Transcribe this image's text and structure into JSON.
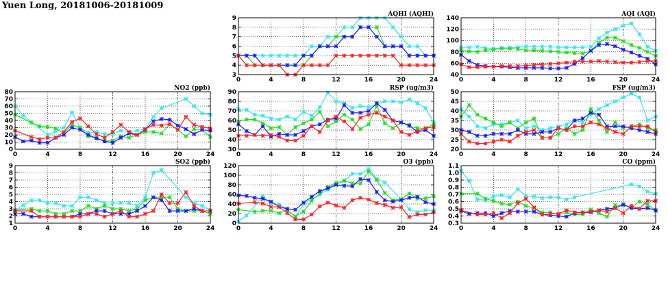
{
  "title": "Yuen Long, 20181006-20181009",
  "series_colors": [
    "#33e6f2",
    "#22dd22",
    "#1a1aff",
    "#ff2020"
  ],
  "chart_data": [
    {
      "type": "line",
      "title": "AQHI (AQHI)",
      "ylim": [
        3,
        9
      ],
      "yticks": [
        3,
        4,
        5,
        6,
        7,
        8,
        9
      ],
      "xlim": [
        0,
        24
      ],
      "xticks": [
        0,
        4,
        8,
        12,
        16,
        20,
        24
      ],
      "series": [
        {
          "name": "cyan",
          "values": [
            5,
            5,
            5,
            5,
            5,
            5,
            5,
            5,
            5,
            6,
            6,
            7,
            7,
            8,
            8,
            9,
            9,
            9,
            9,
            8,
            7,
            6,
            6,
            5,
            5
          ]
        },
        {
          "name": "green",
          "values": [
            5,
            5,
            4,
            4,
            4,
            4,
            4,
            4,
            4,
            5,
            6,
            6,
            7,
            7,
            7,
            8,
            8,
            8,
            6,
            6,
            6,
            5,
            5,
            5,
            5
          ]
        },
        {
          "name": "blue",
          "values": [
            5,
            5,
            5,
            4,
            4,
            4,
            4,
            4,
            5,
            5,
            6,
            6,
            6,
            7,
            7,
            8,
            8,
            7,
            6,
            6,
            6,
            5,
            5,
            5,
            5
          ]
        },
        {
          "name": "red",
          "values": [
            5,
            4,
            4,
            4,
            4,
            4,
            3,
            3,
            4,
            4,
            4,
            4,
            5,
            5,
            5,
            5,
            5,
            5,
            5,
            5,
            4,
            4,
            4,
            4,
            4
          ]
        }
      ]
    },
    {
      "type": "line",
      "title": "AQI (AQI)",
      "ylim": [
        40,
        140
      ],
      "yticks": [
        40,
        60,
        80,
        100,
        120,
        140
      ],
      "xlim": [
        0,
        24
      ],
      "xticks": [
        0,
        4,
        8,
        12,
        16,
        20,
        24
      ],
      "series": [
        {
          "name": "cyan",
          "values": [
            88,
            88,
            89,
            87,
            86,
            87,
            87,
            88,
            90,
            89,
            89,
            89,
            88,
            88,
            88,
            88,
            89,
            104,
            114,
            120,
            126,
            130,
            111,
            89,
            82
          ]
        },
        {
          "name": "green",
          "values": [
            83,
            81,
            80,
            83,
            84,
            86,
            86,
            85,
            83,
            83,
            82,
            81,
            80,
            79,
            78,
            77,
            82,
            96,
            105,
            105,
            99,
            92,
            87,
            80,
            73
          ]
        },
        {
          "name": "blue",
          "values": [
            75,
            64,
            57,
            55,
            54,
            54,
            53,
            52,
            52,
            52,
            52,
            51,
            51,
            52,
            59,
            69,
            82,
            92,
            94,
            90,
            84,
            79,
            73,
            68,
            58
          ]
        },
        {
          "name": "red",
          "values": [
            58,
            53,
            53,
            54,
            54,
            55,
            55,
            55,
            56,
            57,
            58,
            59,
            60,
            61,
            63,
            63,
            63,
            64,
            63,
            62,
            61,
            61,
            62,
            64,
            64
          ]
        }
      ]
    },
    {
      "type": "line",
      "title": "NO2 (ppb)",
      "ylim": [
        0,
        80
      ],
      "yticks": [
        0,
        10,
        20,
        30,
        40,
        50,
        60,
        70,
        80
      ],
      "xlim": [
        0,
        24
      ],
      "xticks": [
        0,
        4,
        8,
        12,
        16,
        20,
        24
      ],
      "series": [
        {
          "name": "cyan",
          "values": [
            60,
            47,
            null,
            null,
            20,
            25,
            30,
            51,
            30,
            23,
            24,
            21,
            21,
            26,
            24,
            26,
            28,
            45,
            57,
            null,
            null,
            70,
            60,
            50,
            48
          ]
        },
        {
          "name": "green",
          "values": [
            48,
            null,
            37,
            32,
            31,
            29,
            22,
            34,
            30,
            18,
            16,
            11,
            12,
            18,
            16,
            20,
            24,
            24,
            22,
            35,
            27,
            18,
            28,
            27,
            17
          ]
        },
        {
          "name": "blue",
          "values": [
            17,
            11,
            12,
            9,
            9,
            16,
            20,
            30,
            27,
            20,
            15,
            11,
            9,
            16,
            22,
            20,
            27,
            39,
            42,
            41,
            33,
            28,
            21,
            27,
            26
          ]
        },
        {
          "name": "red",
          "values": [
            26,
            null,
            17,
            14,
            16,
            16,
            24,
            38,
            43,
            32,
            21,
            16,
            24,
            34,
            24,
            20,
            28,
            34,
            33,
            35,
            27,
            45,
            34,
            31,
            29
          ]
        }
      ]
    },
    {
      "type": "line",
      "title": "RSP (ug/m3)",
      "ylim": [
        30,
        90
      ],
      "yticks": [
        30,
        40,
        50,
        60,
        70,
        80,
        90
      ],
      "xlim": [
        0,
        24
      ],
      "xticks": [
        0,
        4,
        8,
        12,
        16,
        20,
        24
      ],
      "series": [
        {
          "name": "cyan",
          "values": [
            72,
            71,
            66,
            65,
            62,
            61,
            64,
            61,
            69,
            65,
            74,
            89,
            80,
            78,
            73,
            75,
            74,
            77,
            80,
            80,
            79,
            82,
            78,
            73,
            58
          ]
        },
        {
          "name": "green",
          "values": [
            59,
            61,
            61,
            57,
            52,
            53,
            45,
            53,
            57,
            61,
            69,
            54,
            59,
            66,
            61,
            51,
            56,
            75,
            57,
            52,
            58,
            54,
            52,
            52,
            56
          ]
        },
        {
          "name": "blue",
          "values": [
            56,
            49,
            45,
            54,
            43,
            46,
            45,
            45,
            49,
            54,
            56,
            61,
            62,
            76,
            68,
            68,
            70,
            78,
            71,
            60,
            58,
            55,
            48,
            50,
            44
          ]
        },
        {
          "name": "red",
          "values": [
            44,
            44,
            45,
            44,
            45,
            43,
            39,
            39,
            44,
            54,
            48,
            60,
            64,
            59,
            51,
            63,
            66,
            68,
            64,
            60,
            48,
            45,
            49,
            52,
            53
          ]
        }
      ]
    },
    {
      "type": "line",
      "title": "FSP (ug/m3)",
      "ylim": [
        20,
        50
      ],
      "yticks": [
        20,
        25,
        30,
        35,
        40,
        45,
        50
      ],
      "xlim": [
        0,
        24
      ],
      "xticks": [
        0,
        4,
        8,
        12,
        16,
        20,
        24
      ],
      "series": [
        {
          "name": "cyan",
          "values": [
            41,
            37,
            32,
            31,
            33,
            33,
            34,
            35,
            31,
            32,
            30,
            31,
            32,
            33,
            35,
            34,
            38,
            41,
            43,
            45,
            47,
            49,
            47,
            35,
            37
          ]
        },
        {
          "name": "green",
          "values": [
            37,
            43,
            38,
            36,
            34,
            32,
            34,
            31,
            34,
            36,
            26,
            26,
            28,
            31,
            28,
            30,
            41,
            35,
            29,
            34,
            31,
            32,
            33,
            31,
            30
          ]
        },
        {
          "name": "blue",
          "values": [
            30,
            29,
            27,
            27,
            28,
            28,
            28,
            30,
            28,
            28,
            29,
            29,
            31,
            30,
            35,
            36,
            39,
            38,
            32,
            32,
            32,
            31,
            30,
            29,
            28
          ]
        },
        {
          "name": "red",
          "values": [
            28,
            24,
            23,
            23,
            24,
            25,
            24,
            27,
            29,
            30,
            26,
            26,
            31,
            30,
            32,
            32,
            34,
            33,
            31,
            29,
            28,
            32,
            32,
            32,
            29
          ]
        }
      ]
    },
    {
      "type": "line",
      "title": "SO2 (ppb)",
      "ylim": [
        1,
        9
      ],
      "yticks": [
        1,
        2,
        3,
        4,
        5,
        6,
        7,
        8,
        9
      ],
      "xlim": [
        0,
        24
      ],
      "xticks": [
        0,
        4,
        8,
        12,
        16,
        20,
        24
      ],
      "series": [
        {
          "name": "cyan",
          "values": [
            2.8,
            3.5,
            4.2,
            4.2,
            3.8,
            3.8,
            3.4,
            3.4,
            4.6,
            4.6,
            4.2,
            3.8,
            3.8,
            3.8,
            3.8,
            3.4,
            4.6,
            8.0,
            8.4,
            null,
            null,
            4.6,
            3.8,
            3.4,
            2.8
          ]
        },
        {
          "name": "green",
          "values": [
            2.8,
            null,
            3.0,
            2.7,
            2.7,
            2.3,
            2.3,
            2.7,
            2.7,
            3.4,
            3.0,
            3.4,
            3.0,
            3.0,
            2.7,
            3.0,
            4.2,
            4.6,
            4.6,
            4.6,
            3.0,
            2.7,
            2.7,
            2.7,
            2.3
          ]
        },
        {
          "name": "blue",
          "values": [
            2.3,
            2.3,
            1.9,
            1.9,
            1.9,
            1.9,
            1.9,
            1.9,
            2.3,
            2.3,
            2.7,
            2.7,
            2.3,
            2.3,
            2.3,
            2.7,
            3.4,
            4.6,
            4.2,
            2.7,
            2.7,
            2.7,
            3.0,
            2.7,
            2.7
          ]
        },
        {
          "name": "red",
          "values": [
            2.7,
            null,
            2.7,
            1.9,
            1.9,
            1.9,
            1.9,
            1.9,
            1.9,
            2.3,
            2.3,
            1.9,
            2.3,
            2.7,
            1.9,
            1.9,
            2.3,
            2.7,
            5.0,
            3.8,
            3.8,
            5.3,
            3.4,
            2.7,
            2.7
          ]
        }
      ]
    },
    {
      "type": "line",
      "title": "O3 (ppb)",
      "ylim": [
        0,
        120
      ],
      "yticks": [
        0,
        20,
        40,
        60,
        80,
        100,
        120
      ],
      "xlim": [
        0,
        24
      ],
      "xticks": [
        0,
        4,
        8,
        12,
        16,
        20,
        24
      ],
      "series": [
        {
          "name": "cyan",
          "values": [
            4,
            16,
            null,
            56,
            41,
            39,
            29,
            12,
            40,
            50,
            60,
            70,
            80,
            88,
            103,
            103,
            113,
            92,
            85,
            null,
            50,
            29,
            23,
            27,
            27
          ]
        },
        {
          "name": "green",
          "values": [
            28,
            null,
            24,
            26,
            26,
            21,
            27,
            14,
            24,
            47,
            62,
            76,
            84,
            89,
            83,
            83,
            108,
            90,
            63,
            48,
            50,
            62,
            51,
            52,
            56
          ]
        },
        {
          "name": "blue",
          "values": [
            58,
            57,
            53,
            51,
            45,
            34,
            30,
            28,
            43,
            55,
            67,
            73,
            80,
            78,
            77,
            92,
            90,
            65,
            48,
            45,
            48,
            53,
            55,
            44,
            40
          ]
        },
        {
          "name": "red",
          "values": [
            41,
            null,
            44,
            41,
            34,
            34,
            21,
            8,
            8,
            18,
            35,
            43,
            37,
            32,
            48,
            53,
            49,
            42,
            38,
            32,
            33,
            13,
            18,
            18,
            23
          ]
        }
      ]
    },
    {
      "type": "line",
      "title": "CO (ppm)",
      "ylim": [
        0.3,
        1.1
      ],
      "yticks": [
        "0.3",
        "0.4",
        "0.5",
        "0.6",
        "0.7",
        "0.8",
        "0.9",
        "1.0",
        "1.1"
      ],
      "xlim": [
        0,
        24
      ],
      "xticks": [
        0,
        4,
        8,
        12,
        16,
        20,
        24
      ],
      "series": [
        {
          "name": "cyan",
          "values": [
            1.03,
            0.89,
            0.63,
            0.62,
            0.67,
            0.69,
            0.66,
            0.77,
            0.68,
            0.67,
            0.65,
            0.66,
            0.66,
            0.63,
            0.66,
            null,
            null,
            null,
            null,
            null,
            null,
            0.84,
            0.81,
            0.74,
            0.71
          ]
        },
        {
          "name": "green",
          "values": [
            0.71,
            null,
            0.71,
            0.64,
            0.61,
            0.57,
            0.56,
            0.6,
            0.54,
            0.51,
            0.45,
            0.45,
            0.42,
            0.45,
            0.42,
            0.42,
            0.49,
            0.44,
            0.39,
            0.55,
            0.55,
            0.52,
            0.6,
            0.56,
            0.47
          ]
        },
        {
          "name": "blue",
          "values": [
            0.47,
            0.43,
            0.44,
            0.44,
            0.4,
            0.44,
            0.47,
            0.46,
            0.46,
            0.46,
            0.42,
            0.41,
            0.4,
            0.39,
            0.44,
            0.45,
            0.45,
            0.48,
            0.5,
            0.51,
            0.56,
            0.51,
            0.5,
            0.51,
            0.48
          ]
        },
        {
          "name": "red",
          "values": [
            0.48,
            null,
            0.42,
            0.42,
            0.44,
            0.37,
            0.44,
            0.58,
            0.64,
            0.52,
            0.42,
            0.43,
            0.43,
            0.48,
            0.45,
            0.45,
            0.46,
            0.48,
            0.46,
            0.51,
            0.44,
            0.54,
            0.5,
            0.61,
            0.61
          ]
        }
      ]
    }
  ]
}
